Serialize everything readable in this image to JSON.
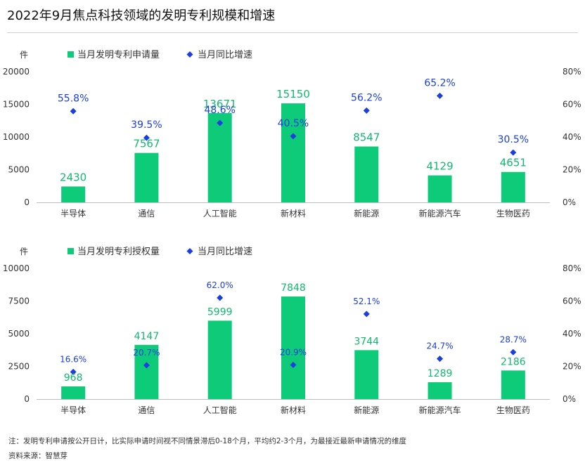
{
  "title": "2022年9月焦点科技领域的发明专利规模和增速",
  "colors": {
    "bar": "#0ecb7a",
    "bar_label": "#12b86d",
    "point": "#1a3ee0",
    "point_label": "#1a3ee0",
    "axis_text": "#333333",
    "grid": "#bdbdbd"
  },
  "chart_data": [
    {
      "type": "bar",
      "unit_label": "件",
      "categories": [
        "半导体",
        "通信",
        "人工智能",
        "新材料",
        "新能源",
        "新能源汽车",
        "生物医药"
      ],
      "series": [
        {
          "name": "当月发明专利申请量",
          "axis": "left",
          "kind": "bar",
          "values": [
            2430,
            7567,
            13671,
            15150,
            8547,
            4129,
            4651
          ],
          "labels": [
            "2430",
            "7567",
            "13671",
            "15150",
            "8547",
            "4129",
            "4651"
          ]
        },
        {
          "name": "当月同比增速",
          "axis": "right",
          "kind": "point",
          "values": [
            55.8,
            39.5,
            48.6,
            40.5,
            56.2,
            65.2,
            30.5
          ],
          "labels": [
            "55.8%",
            "39.5%",
            "48.6%",
            "40.5%",
            "56.2%",
            "65.2%",
            "30.5%"
          ]
        }
      ],
      "ylim_left": [
        0,
        20000
      ],
      "yticks_left": [
        "0",
        "5000",
        "10000",
        "15000",
        "20000"
      ],
      "ylim_right": [
        0,
        80
      ],
      "yticks_right": [
        "0%",
        "20%",
        "40%",
        "60%",
        "80%"
      ]
    },
    {
      "type": "bar",
      "unit_label": "件",
      "categories": [
        "半导体",
        "通信",
        "人工智能",
        "新材料",
        "新能源",
        "新能源汽车",
        "生物医药"
      ],
      "series": [
        {
          "name": "当月发明专利授权量",
          "axis": "left",
          "kind": "bar",
          "values": [
            968,
            4147,
            5999,
            7848,
            3744,
            1289,
            2186
          ],
          "labels": [
            "968",
            "4147",
            "5999",
            "7848",
            "3744",
            "1289",
            "2186"
          ]
        },
        {
          "name": "当月同比增速",
          "axis": "right",
          "kind": "point",
          "values": [
            16.6,
            20.7,
            62.0,
            20.9,
            52.1,
            24.7,
            28.7
          ],
          "labels": [
            "16.6%",
            "20.7%",
            "62.0%",
            "20.9%",
            "52.1%",
            "24.7%",
            "28.7%"
          ]
        }
      ],
      "ylim_left": [
        0,
        10000
      ],
      "yticks_left": [
        "0",
        "2500",
        "5000",
        "7500",
        "10000"
      ],
      "ylim_right": [
        0,
        80
      ],
      "yticks_right": [
        "0%",
        "20%",
        "40%",
        "60%",
        "80%"
      ]
    }
  ],
  "notes": [
    "注：发明专利申请按公开日计，比实际申请时间视不同情景滞后0-18个月，平均约2-3个月，为最接近最新申请情况的维度",
    "资料来源：智慧芽"
  ]
}
